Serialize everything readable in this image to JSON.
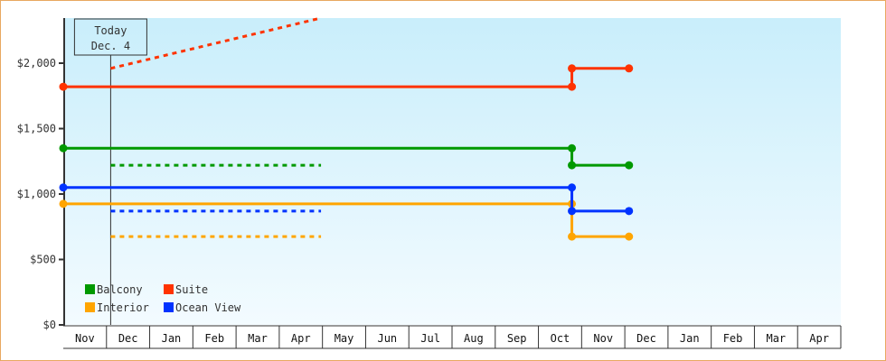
{
  "chart_data": {
    "type": "line",
    "line_style": "step",
    "y_ticks": [
      0,
      500,
      1000,
      1500,
      2000
    ],
    "y_tick_labels": [
      "$0",
      "$500",
      "$1,000",
      "$1,500",
      "$2,000"
    ],
    "ylim": [
      0,
      2345
    ],
    "x_months": [
      "Nov",
      "Dec",
      "Jan",
      "Feb",
      "Mar",
      "Apr",
      "May",
      "Jun",
      "Jul",
      "Aug",
      "Sep",
      "Oct",
      "Nov",
      "Dec",
      "Jan",
      "Feb",
      "Mar",
      "Apr"
    ],
    "today": {
      "line1": "Today",
      "line2": "Dec. 4",
      "date": "Dec 4"
    },
    "grid": false,
    "legend_placement": "bottom-left",
    "background": [
      "#c9eefb",
      "#f3fbff"
    ],
    "series": [
      {
        "name": "Balcony",
        "color": "#009900",
        "points": [
          [
            "Nov 1",
            1350
          ],
          [
            "Oct 25",
            1350
          ],
          [
            "Oct 25",
            1220
          ],
          [
            "Dec 4",
            1220
          ]
        ],
        "forecast": [
          [
            "Dec 4",
            1220
          ],
          [
            "Apr 30",
            1220
          ]
        ]
      },
      {
        "name": "Suite",
        "color": "#ff3300",
        "points": [
          [
            "Nov 1",
            1820
          ],
          [
            "Oct 25",
            1820
          ],
          [
            "Oct 25",
            1960
          ],
          [
            "Dec 4",
            1960
          ]
        ],
        "forecast": [
          [
            "Dec 4",
            1960
          ],
          [
            "Apr 30",
            2345
          ]
        ]
      },
      {
        "name": "Interior",
        "color": "#ffa500",
        "points": [
          [
            "Nov 1",
            925
          ],
          [
            "Oct 25",
            925
          ],
          [
            "Oct 25",
            675
          ],
          [
            "Dec 4",
            675
          ]
        ],
        "forecast": [
          [
            "Dec 4",
            675
          ],
          [
            "Apr 30",
            675
          ]
        ]
      },
      {
        "name": "Ocean View",
        "color": "#0033ff",
        "points": [
          [
            "Nov 1",
            1050
          ],
          [
            "Oct 25",
            1050
          ],
          [
            "Oct 25",
            870
          ],
          [
            "Dec 4",
            870
          ]
        ],
        "forecast": [
          [
            "Dec 4",
            870
          ],
          [
            "Apr 30",
            870
          ]
        ]
      }
    ]
  }
}
